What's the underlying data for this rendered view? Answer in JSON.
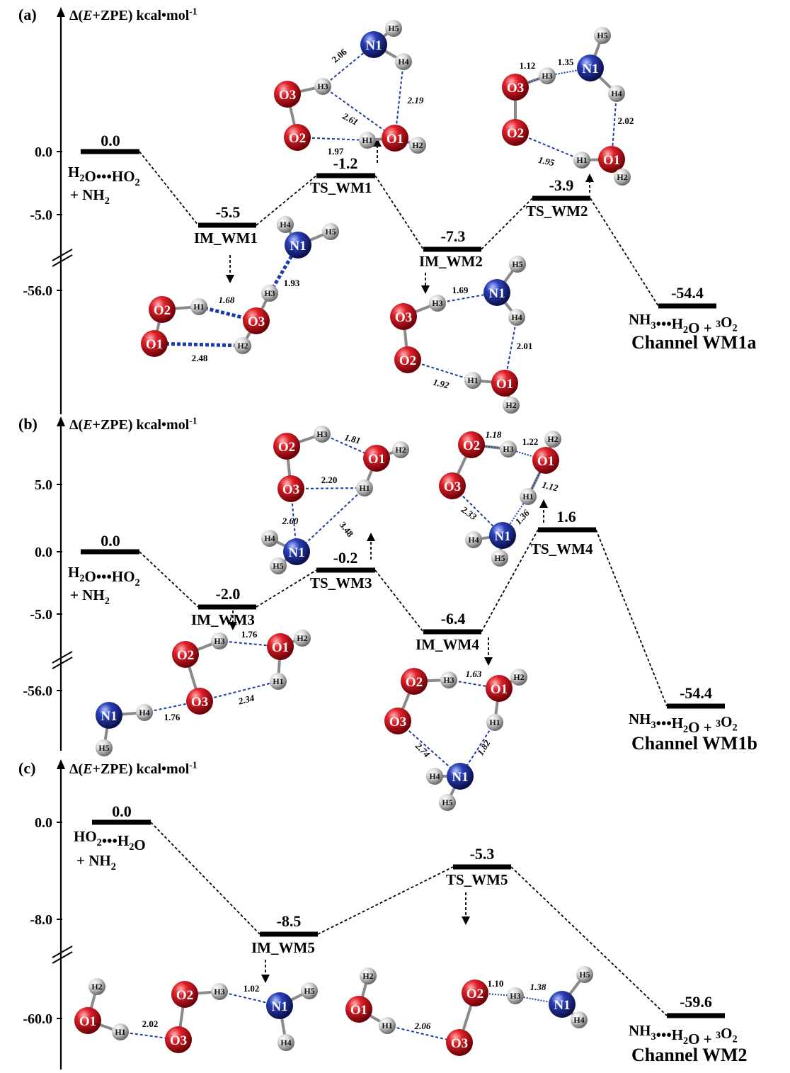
{
  "axis_title_prefix": "Δ(",
  "axis_title_var": "E",
  "axis_title_suffix": "+ZPE) kcal•mol",
  "axis_title_exp": "-1",
  "colors": {
    "O": "#c8141c",
    "N": "#1c2f9a",
    "H": "#d9d9d9",
    "bond": "#1a3aa8",
    "level": "#000000"
  },
  "panels": [
    {
      "label": "(a)",
      "channel": "Channel  WM1a",
      "ticks": [
        "0.0",
        "-5.0",
        "-56.0"
      ],
      "levels": [
        {
          "name": "reactant",
          "value": "0.0",
          "label1": "H",
          "label1_sub": "2",
          "label1_mid": "O•••HO",
          "label1_sub2": "2",
          "label2": "+ NH",
          "label2_sub": "2"
        },
        {
          "name": "IM_WM1",
          "value": "-5.5",
          "label": "IM_WM1"
        },
        {
          "name": "TS_WM1",
          "value": "-1.2",
          "label": "TS_WM1"
        },
        {
          "name": "IM_WM2",
          "value": "-7.3",
          "label": "IM_WM2"
        },
        {
          "name": "TS_WM2",
          "value": "-3.9",
          "label": "TS_WM2"
        },
        {
          "name": "product",
          "value": "-54.4",
          "label_a": "NH",
          "label_a_sub": "3",
          "label_b": "•••H",
          "label_b_sub": "2",
          "label_c": "O + ",
          "label_c_sup": "3",
          "label_d": "O",
          "label_d_sub": "2"
        }
      ],
      "atoms": [
        "O2",
        "H1",
        "O3",
        "O1",
        "H2",
        "H3",
        "N1",
        "H4",
        "H5",
        "O3",
        "H3",
        "O2",
        "H1",
        "O1",
        "H2",
        "N1",
        "H4",
        "H5",
        "O3",
        "O2",
        "H1",
        "O1",
        "H2",
        "N1",
        "H3",
        "H4",
        "H5",
        "O3",
        "O2",
        "H1",
        "O1",
        "H2",
        "N1",
        "H3",
        "H4",
        "H5"
      ],
      "distances": [
        "1.68",
        "1.93",
        "2.48",
        "2.06",
        "2.19",
        "2.61",
        "1.97",
        "1.12",
        "1.35",
        "2.02",
        "1.95",
        "1.69",
        "2.01",
        "1.92"
      ]
    },
    {
      "label": "(b)",
      "channel": "Channel  WM1b",
      "ticks": [
        "5.0",
        "0.0",
        "-5.0",
        "-56.0"
      ],
      "levels": [
        {
          "name": "reactant",
          "value": "0.0"
        },
        {
          "name": "IM_WM3",
          "value": "-2.0",
          "label": "IM_WM3"
        },
        {
          "name": "TS_WM3",
          "value": "-0.2",
          "label": "TS_WM3"
        },
        {
          "name": "IM_WM4",
          "value": "-6.4",
          "label": "IM_WM4"
        },
        {
          "name": "TS_WM4",
          "value": "1.6",
          "label": "TS_WM4"
        },
        {
          "name": "product",
          "value": "-54.4"
        }
      ],
      "distances": [
        "1.76",
        "1.76",
        "2.34",
        "1.81",
        "2.20",
        "2.60",
        "3.48",
        "1.18",
        "1.22",
        "1.12",
        "2.33",
        "1.36",
        "1.63",
        "2.74",
        "1.82"
      ]
    },
    {
      "label": "(c)",
      "channel": "Channel  WM2",
      "ticks": [
        "0.0",
        "-8.0",
        "-60.0"
      ],
      "levels": [
        {
          "name": "reactant",
          "value": "0.0",
          "label1": "HO",
          "label1_sub": "2",
          "label1_mid": "•••H",
          "label1_sub2": "2",
          "label1_end": "O",
          "label2": "+ NH",
          "label2_sub": "2"
        },
        {
          "name": "IM_WM5",
          "value": "-8.5",
          "label": "IM_WM5"
        },
        {
          "name": "TS_WM5",
          "value": "-5.3",
          "label": "TS_WM5"
        },
        {
          "name": "product",
          "value": "-59.6"
        }
      ],
      "distances": [
        "2.02",
        "1.02",
        "2.06",
        "1.10",
        "1.38"
      ]
    }
  ]
}
